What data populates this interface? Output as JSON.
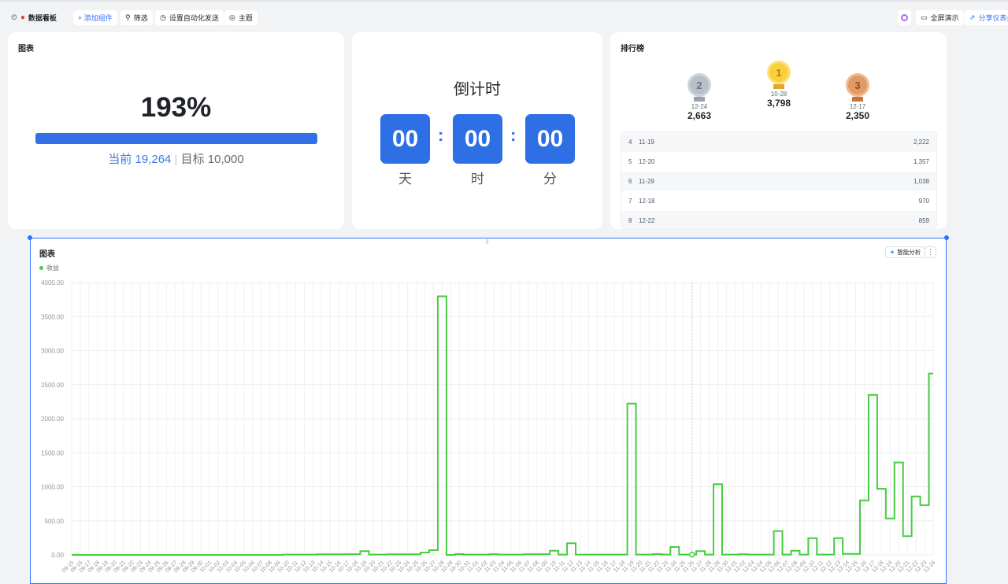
{
  "toolbar": {
    "title": "数据看板",
    "add_component": "+ 添加组件",
    "filter": "筛选",
    "auto_send": "设置自动化发送",
    "theme": "主题",
    "fullscreen": "全屏演示",
    "share": "分享仪表盘"
  },
  "progress_card": {
    "title": "图表",
    "percent_text": "193%",
    "progress_fraction": 1.0,
    "current_label": "当前 19,264",
    "target_label": "目标 10,000",
    "accent": "#3370e8"
  },
  "countdown_card": {
    "title": "倒计时",
    "days": "00",
    "hours": "00",
    "minutes": "00",
    "colon": ":",
    "days_unit": "天",
    "hours_unit": "时",
    "minutes_unit": "分"
  },
  "ranking_card": {
    "title": "排行榜",
    "podium": [
      {
        "rank": "2",
        "date": "12-24",
        "value": "2,663"
      },
      {
        "rank": "1",
        "date": "10-28",
        "value": "3,798"
      },
      {
        "rank": "3",
        "date": "12-17",
        "value": "2,350"
      }
    ],
    "rows": [
      {
        "rank": "4",
        "date": "11-19",
        "value": "2,222"
      },
      {
        "rank": "5",
        "date": "12-20",
        "value": "1,357"
      },
      {
        "rank": "6",
        "date": "11-29",
        "value": "1,038"
      },
      {
        "rank": "7",
        "date": "12-18",
        "value": "970"
      },
      {
        "rank": "8",
        "date": "12-22",
        "value": "859"
      }
    ]
  },
  "chart_card": {
    "title": "图表",
    "ai_button": "智能分析",
    "more": "⋮"
  },
  "chart_data": {
    "type": "line",
    "step": "middle",
    "grid": true,
    "legend_position": "top-left",
    "series_color": "#46cc3f",
    "ylim": [
      0,
      4000
    ],
    "yticks": [
      "0.00",
      "500.00",
      "1000.00",
      "1500.00",
      "2000.00",
      "2500.00",
      "3000.00",
      "3500.00",
      "4000.00"
    ],
    "x": [
      "09-15",
      "09-16",
      "09-17",
      "09-18",
      "09-19",
      "09-20",
      "09-21",
      "09-22",
      "09-23",
      "09-24",
      "09-25",
      "09-26",
      "09-27",
      "09-28",
      "09-29",
      "09-30",
      "10-01",
      "10-02",
      "10-03",
      "10-04",
      "10-05",
      "10-06",
      "10-07",
      "10-08",
      "10-09",
      "10-10",
      "10-11",
      "10-12",
      "10-13",
      "10-14",
      "10-15",
      "10-16",
      "10-17",
      "10-18",
      "10-19",
      "10-20",
      "10-21",
      "10-22",
      "10-23",
      "10-24",
      "10-25",
      "10-26",
      "10-27",
      "10-28",
      "10-29",
      "10-30",
      "10-31",
      "11-01",
      "11-02",
      "11-03",
      "11-04",
      "11-05",
      "11-06",
      "11-07",
      "11-08",
      "11-09",
      "11-10",
      "11-11",
      "11-12",
      "11-13",
      "11-14",
      "11-15",
      "11-16",
      "11-17",
      "11-18",
      "11-19",
      "11-20",
      "11-21",
      "11-22",
      "11-23",
      "11-24",
      "11-25",
      "11-26",
      "11-27",
      "11-28",
      "11-29",
      "11-30",
      "12-01",
      "12-02",
      "12-03",
      "12-04",
      "12-05",
      "12-06",
      "12-07",
      "12-08",
      "12-09",
      "12-10",
      "12-11",
      "12-12",
      "12-13",
      "12-14",
      "12-15",
      "12-16",
      "12-17",
      "12-18",
      "12-19",
      "12-20",
      "12-21",
      "12-22",
      "12-23",
      "12-24"
    ],
    "series": [
      {
        "name": "收益",
        "values": [
          0,
          0,
          0,
          0,
          0,
          0,
          0,
          0,
          0,
          0,
          0,
          0,
          0,
          0,
          0,
          0,
          0,
          0,
          0,
          0,
          0,
          0,
          0,
          0,
          0,
          5,
          5,
          5,
          5,
          8,
          8,
          8,
          10,
          10,
          55,
          5,
          5,
          8,
          8,
          8,
          8,
          35,
          70,
          3798,
          0,
          12,
          5,
          5,
          5,
          10,
          5,
          5,
          5,
          10,
          10,
          10,
          60,
          5,
          170,
          5,
          5,
          5,
          5,
          5,
          5,
          2222,
          5,
          5,
          12,
          5,
          115,
          5,
          5,
          55,
          5,
          1038,
          5,
          5,
          10,
          5,
          5,
          5,
          350,
          5,
          60,
          5,
          245,
          5,
          5,
          245,
          15,
          15,
          800,
          2350,
          970,
          535,
          1357,
          275,
          859,
          730,
          2663
        ]
      }
    ],
    "highlighted_x": "11-26"
  }
}
